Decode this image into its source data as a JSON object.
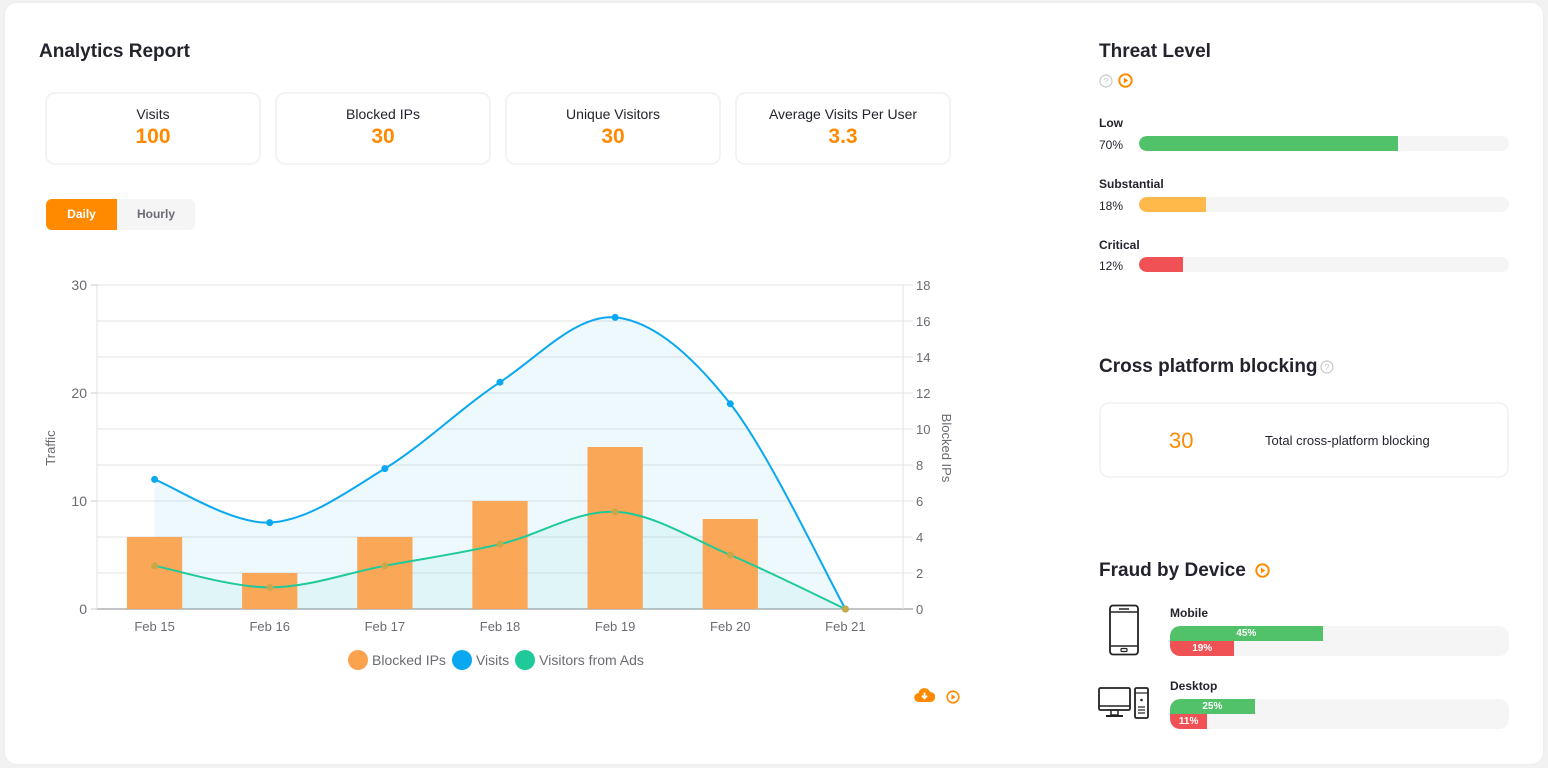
{
  "analytics": {
    "title": "Analytics Report",
    "stats": [
      {
        "label": "Visits",
        "value": "100"
      },
      {
        "label": "Blocked IPs",
        "value": "30"
      },
      {
        "label": "Unique Visitors",
        "value": "30"
      },
      {
        "label": "Average Visits Per User",
        "value": "3.3"
      }
    ],
    "toggle": {
      "daily": "Daily",
      "hourly": "Hourly",
      "active": "Daily"
    },
    "icons": {
      "download": "cloud-download-icon",
      "play": "play-circle-icon"
    }
  },
  "chart_data": {
    "type": "bar",
    "categories": [
      "Feb 15",
      "Feb 16",
      "Feb 17",
      "Feb 18",
      "Feb 19",
      "Feb 20",
      "Feb 21"
    ],
    "series": [
      {
        "name": "Blocked IPs",
        "type": "bar",
        "axis": "right",
        "color": "#fba24f",
        "values": [
          4,
          2,
          4,
          6,
          9,
          5,
          0
        ]
      },
      {
        "name": "Visits",
        "type": "area-spline",
        "axis": "left",
        "color": "#0aa8f0",
        "values": [
          12,
          8,
          13,
          21,
          27,
          19,
          0
        ]
      },
      {
        "name": "Visitors from Ads",
        "type": "area-spline",
        "axis": "left",
        "color": "#1ec99a",
        "values": [
          4,
          2,
          4,
          6,
          9,
          5,
          0
        ]
      }
    ],
    "ylabel": "Traffic",
    "y2label": "Blocked IPs",
    "ylim": [
      0,
      30
    ],
    "y2lim": [
      0,
      18
    ],
    "yticks": [
      "0",
      "10",
      "20",
      "30"
    ],
    "y2ticks": [
      "0",
      "2",
      "4",
      "6",
      "8",
      "10",
      "12",
      "14",
      "16",
      "18"
    ],
    "grid": true,
    "legend": "bottom-center"
  },
  "threat": {
    "title": "Threat Level",
    "levels": [
      {
        "label": "Low",
        "pct_text": "70%",
        "pct": 70,
        "color": "#52c26a"
      },
      {
        "label": "Substantial",
        "pct_text": "18%",
        "pct": 18,
        "color": "#ffb94a"
      },
      {
        "label": "Critical",
        "pct_text": "12%",
        "pct": 12,
        "color": "#f05154"
      }
    ]
  },
  "cross_platform": {
    "title": "Cross platform blocking",
    "value": "30",
    "description": "Total cross-platform blocking"
  },
  "fraud_device": {
    "title": "Fraud by Device",
    "devices": [
      {
        "name": "Mobile",
        "icon": "mobile-phone-icon",
        "green_text": "45%",
        "green": 45,
        "red_text": "19%",
        "red": 19
      },
      {
        "name": "Desktop",
        "icon": "desktop-computer-icon",
        "green_text": "25%",
        "green": 25,
        "red_text": "11%",
        "red": 11
      }
    ]
  }
}
